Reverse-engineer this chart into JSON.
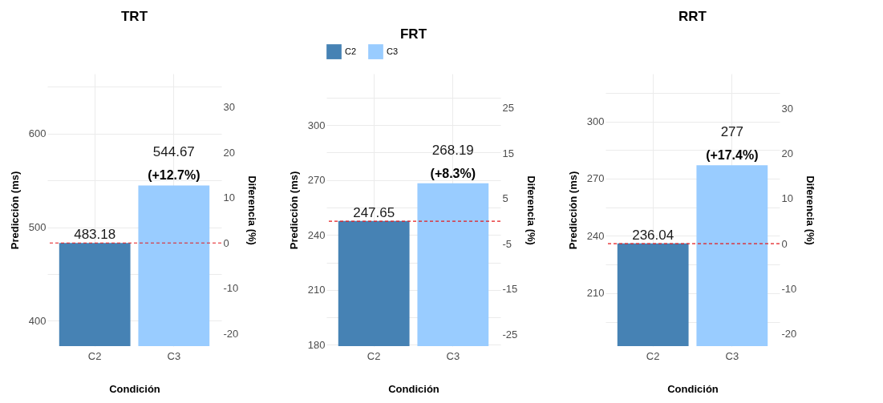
{
  "chart_data": [
    {
      "type": "bar",
      "title": "TRT",
      "xlabel": "Condición",
      "ylabel": "Predicción (ms)",
      "y2label": "Diferencia (%)",
      "categories": [
        "C2",
        "C3"
      ],
      "series": [
        {
          "color": "#4682b4",
          "values": [
            483.18,
            null
          ]
        },
        {
          "color": "#99ccff",
          "values": [
            null,
            544.67
          ]
        }
      ],
      "data_labels": true,
      "annotations": [
        {
          "text": "(+12.7%)",
          "x": "C3",
          "y": 544.67
        }
      ],
      "ylim": [
        373,
        664
      ],
      "yticks": [
        400,
        {
          "value": 450,
          "label": null
        },
        500,
        {
          "value": 550,
          "label": null
        },
        600,
        {
          "value": 650,
          "label": null
        }
      ],
      "y2lim": [
        -22.8,
        37.4
      ],
      "y2ticks": [
        -20,
        -10,
        0,
        10,
        20,
        30
      ],
      "ref_lines": [
        {
          "axis": "y2",
          "value": 0,
          "color": "#e31a1c",
          "line_style": "dashed"
        }
      ],
      "grid": true,
      "legend": false
    },
    {
      "type": "bar",
      "title": "FRT",
      "xlabel": "Condición",
      "ylabel": "Predicción (ms)",
      "y2label": "Diferencia (%)",
      "categories": [
        "C2",
        "C3"
      ],
      "series": [
        {
          "name": "C2",
          "color": "#4682b4",
          "values": [
            247.65,
            null
          ]
        },
        {
          "name": "C3",
          "color": "#99ccff",
          "values": [
            null,
            268.19
          ]
        }
      ],
      "data_labels": true,
      "annotations": [
        {
          "text": "(+8.3%)",
          "x": "C3",
          "y": 268.19
        }
      ],
      "ylim": [
        179.3,
        328
      ],
      "yticks": [
        180,
        {
          "value": 195,
          "label": null
        },
        210,
        {
          "value": 225,
          "label": null
        },
        240,
        {
          "value": 255,
          "label": null
        },
        270,
        {
          "value": 285,
          "label": null
        },
        300,
        {
          "value": 315,
          "label": null
        }
      ],
      "y2lim": [
        -27.6,
        32.6
      ],
      "y2ticks": [
        -25,
        -15,
        -5,
        5,
        15,
        25
      ],
      "ref_lines": [
        {
          "axis": "y2",
          "value": 0,
          "color": "#e31a1c",
          "line_style": "dashed"
        }
      ],
      "grid": true,
      "legend": "top"
    },
    {
      "type": "bar",
      "title": "RRT",
      "xlabel": "Condición",
      "ylabel": "Predicción (ms)",
      "y2label": "Diferencia (%)",
      "categories": [
        "C2",
        "C3"
      ],
      "series": [
        {
          "color": "#4682b4",
          "values": [
            236.04,
            null
          ]
        },
        {
          "color": "#99ccff",
          "values": [
            null,
            277
          ]
        }
      ],
      "data_labels": true,
      "annotations": [
        {
          "text": "(+17.4%)",
          "x": "C3",
          "y": 277
        }
      ],
      "ylim": [
        182.2,
        325
      ],
      "yticks": [
        {
          "value": 195,
          "label": null
        },
        210,
        {
          "value": 225,
          "label": null
        },
        240,
        {
          "value": 255,
          "label": null
        },
        270,
        {
          "value": 285,
          "label": null
        },
        300,
        {
          "value": 315,
          "label": null
        }
      ],
      "y2lim": [
        -22.8,
        37.8
      ],
      "y2ticks": [
        -20,
        -10,
        0,
        10,
        20,
        30
      ],
      "ref_lines": [
        {
          "axis": "y2",
          "value": 0,
          "color": "#e31a1c",
          "line_style": "dashed"
        }
      ],
      "grid": true,
      "legend": false
    }
  ]
}
